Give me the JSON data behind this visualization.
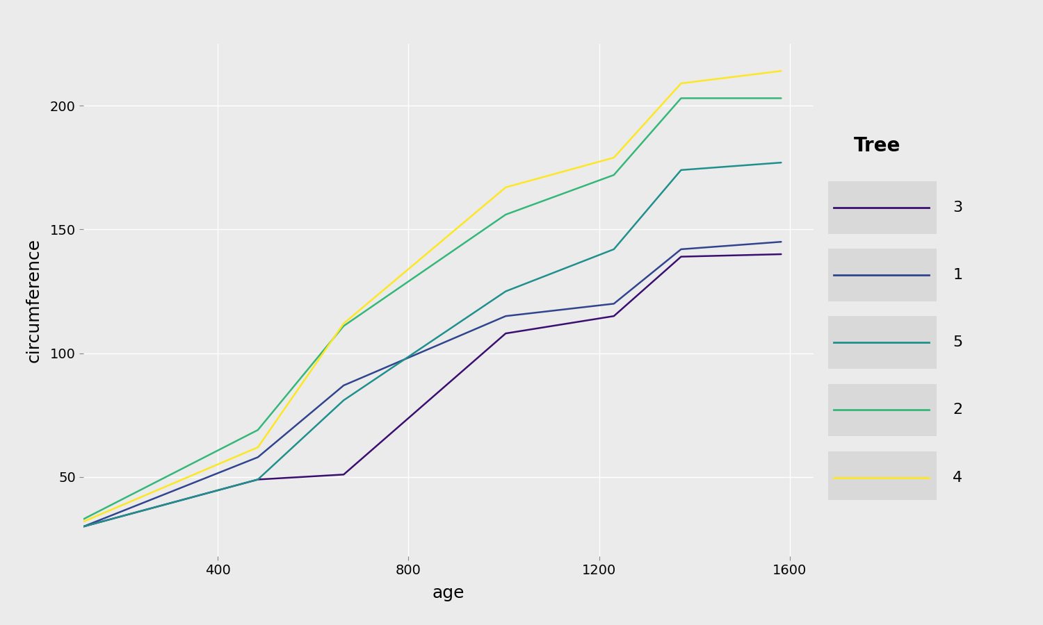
{
  "title": "",
  "xlabel": "age",
  "ylabel": "circumference",
  "background_color": "#EBEBEB",
  "plot_bg": "#EBEBEB",
  "legend_title": "Tree",
  "trees": {
    "3": {
      "age": [
        118,
        484,
        664,
        1004,
        1231,
        1372,
        1582
      ],
      "circ": [
        30,
        49,
        51,
        108,
        115,
        139,
        140
      ],
      "color": "#3B0F70",
      "label": "3"
    },
    "1": {
      "age": [
        118,
        484,
        664,
        1004,
        1231,
        1372,
        1582
      ],
      "circ": [
        30,
        58,
        87,
        115,
        120,
        142,
        145
      ],
      "color": "#31448E",
      "label": "1"
    },
    "5": {
      "age": [
        118,
        484,
        664,
        1004,
        1231,
        1372,
        1582
      ],
      "circ": [
        30,
        49,
        81,
        125,
        142,
        174,
        177
      ],
      "color": "#20908C",
      "label": "5"
    },
    "2": {
      "age": [
        118,
        484,
        664,
        1004,
        1231,
        1372,
        1582
      ],
      "circ": [
        33,
        69,
        111,
        156,
        172,
        203,
        203
      ],
      "color": "#35B779",
      "label": "2"
    },
    "4": {
      "age": [
        118,
        484,
        664,
        1004,
        1231,
        1372,
        1582
      ],
      "circ": [
        32,
        62,
        112,
        167,
        179,
        209,
        214
      ],
      "color": "#FDE725",
      "label": "4"
    }
  },
  "legend_order": [
    "3",
    "1",
    "5",
    "2",
    "4"
  ],
  "xlim_left": 118,
  "xlim_right": 1650,
  "ylim_bottom": 18,
  "ylim_top": 225,
  "xticks": [
    400,
    800,
    1200,
    1600
  ],
  "yticks": [
    50,
    100,
    150,
    200
  ],
  "linewidth": 1.8,
  "grid_color": "#FFFFFF",
  "tick_label_size": 14,
  "axis_label_size": 18,
  "legend_title_size": 20,
  "legend_label_size": 16,
  "legend_box_color": "#D9D9D9"
}
